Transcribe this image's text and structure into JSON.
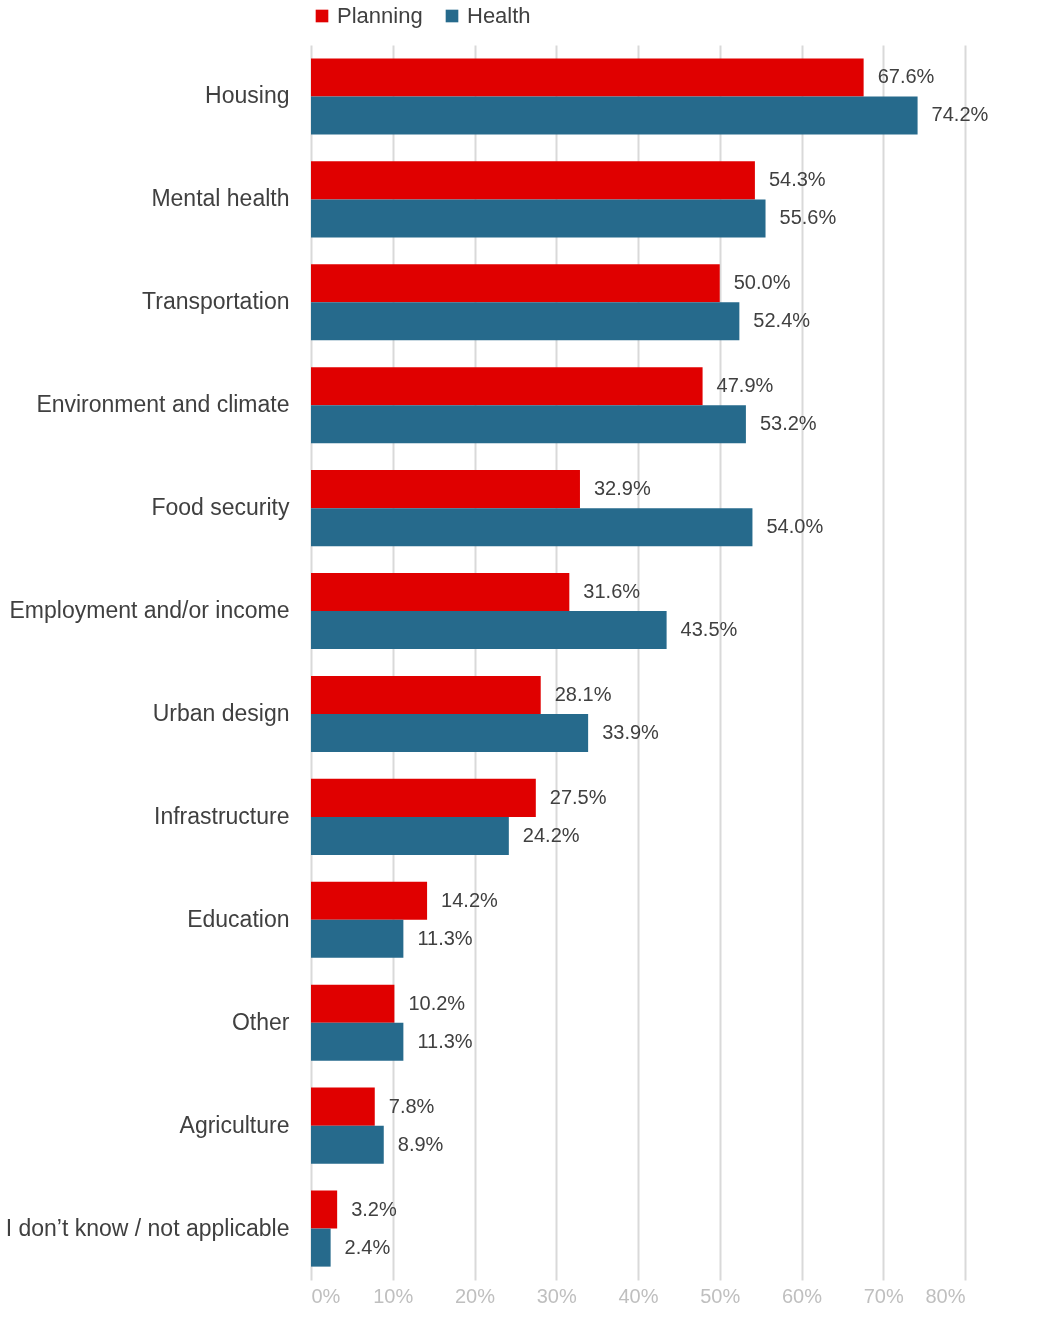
{
  "chart_data": {
    "type": "bar",
    "orientation": "horizontal",
    "categories": [
      "Housing",
      "Mental health",
      "Transportation",
      "Environment and climate",
      "Food security",
      "Employment and/or income",
      "Urban design",
      "Infrastructure",
      "Education",
      "Other",
      "Agriculture",
      "I don’t know / not applicable"
    ],
    "series": [
      {
        "name": "Planning",
        "color": "#e00000",
        "values": [
          67.6,
          54.3,
          50.0,
          47.9,
          32.9,
          31.6,
          28.1,
          27.5,
          14.2,
          10.2,
          7.8,
          3.2
        ],
        "value_labels": [
          "67.6%",
          "54.3%",
          "50.0%",
          "47.9%",
          "32.9%",
          "31.6%",
          "28.1%",
          "27.5%",
          "14.2%",
          "10.2%",
          "7.8%",
          "3.2%"
        ]
      },
      {
        "name": "Health",
        "color": "#266a8c",
        "values": [
          74.2,
          55.6,
          52.4,
          53.2,
          54.0,
          43.5,
          33.9,
          24.2,
          11.3,
          11.3,
          8.9,
          2.4
        ],
        "value_labels": [
          "74.2%",
          "55.6%",
          "52.4%",
          "53.2%",
          "54.0%",
          "43.5%",
          "33.9%",
          "24.2%",
          "11.3%",
          "11.3%",
          "8.9%",
          "2.4%"
        ]
      }
    ],
    "xlim": [
      0,
      80
    ],
    "xticks": [
      {
        "value": 0,
        "label": "0%"
      },
      {
        "value": 10,
        "label": "10%"
      },
      {
        "value": 20,
        "label": "20%"
      },
      {
        "value": 30,
        "label": "30%"
      },
      {
        "value": 40,
        "label": "40%"
      },
      {
        "value": 50,
        "label": "50%"
      },
      {
        "value": 60,
        "label": "60%"
      },
      {
        "value": 70,
        "label": "70%"
      },
      {
        "value": 80,
        "label": "80%"
      }
    ],
    "grid": "x",
    "legend": "top"
  }
}
